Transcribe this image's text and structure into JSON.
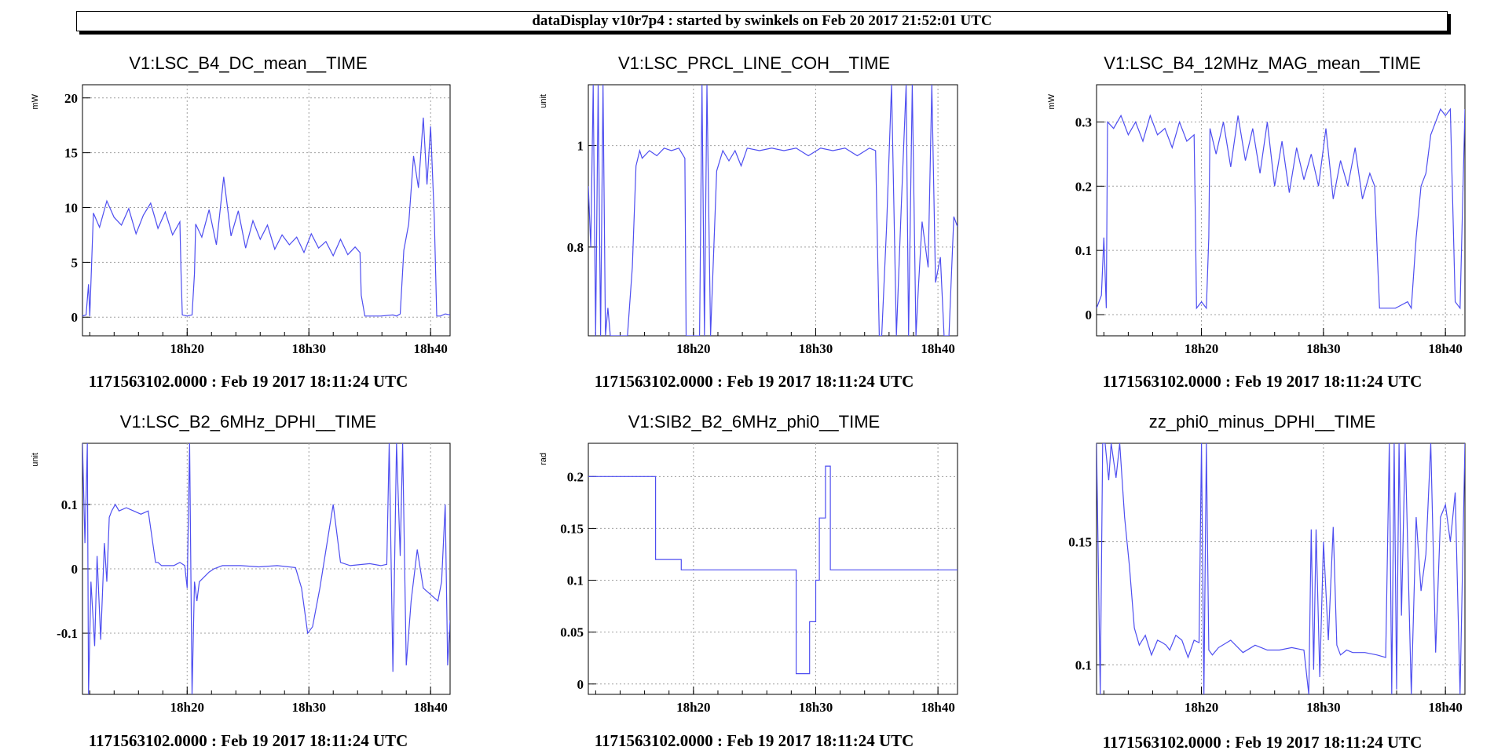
{
  "header": {
    "title": "dataDisplay v10r7p4 : started by swinkels on Feb 20 2017 21:52:01 UTC"
  },
  "style": {
    "line_color": "#4e4ef0",
    "grid_color": "#a0a0a0"
  },
  "chart_data": [
    {
      "type": "line",
      "title": "V1:LSC_B4_DC_mean__TIME",
      "ylabel": "mW",
      "xlabel": "1171563102.0000 : Feb 19 2017 18:11:24 UTC",
      "xlim": [
        0,
        30.2
      ],
      "ylim": [
        -1.7,
        21.2
      ],
      "xticks": [
        {
          "v": 8.6,
          "label": "18h20"
        },
        {
          "v": 18.6,
          "label": "18h30"
        },
        {
          "v": 28.6,
          "label": "18h40"
        }
      ],
      "yticks": [
        {
          "v": 0,
          "label": "0"
        },
        {
          "v": 5,
          "label": "5"
        },
        {
          "v": 10,
          "label": "10"
        },
        {
          "v": 15,
          "label": "15"
        },
        {
          "v": 20,
          "label": "20"
        }
      ],
      "series": [
        {
          "x": [
            0,
            0.3,
            0.5,
            0.6,
            0.9,
            1.4,
            2,
            2.6,
            3.2,
            3.8,
            4.4,
            5,
            5.6,
            6.2,
            6.8,
            7.4,
            8,
            8.1,
            8.2,
            8.6,
            9,
            9.2,
            9.3,
            9.8,
            10.4,
            11,
            11.6,
            12.2,
            12.8,
            13.4,
            14,
            14.6,
            15.2,
            15.8,
            16.4,
            17,
            17.6,
            18.2,
            18.8,
            19.4,
            20,
            20.6,
            21.2,
            21.8,
            22.4,
            22.8,
            22.9,
            23.2,
            24.5,
            25.5,
            25.8,
            26.1,
            26.4,
            26.8,
            27.2,
            27.6,
            28,
            28.3,
            28.6,
            28.9,
            29.1,
            29.4,
            29.8,
            30.2
          ],
          "y": [
            0.1,
            0.2,
            3,
            0.1,
            9.5,
            8.2,
            10.6,
            9.1,
            8.4,
            9.9,
            7.6,
            9.3,
            10.4,
            8.1,
            9.6,
            7.5,
            8.7,
            4,
            0.2,
            0.1,
            0.2,
            4,
            8.5,
            7.3,
            9.8,
            6.6,
            12.8,
            7.4,
            9.7,
            6.3,
            8.8,
            7.1,
            8.4,
            6.2,
            7.5,
            6.6,
            7.3,
            5.9,
            7.6,
            6.3,
            6.9,
            5.6,
            7.1,
            5.7,
            6.4,
            5.9,
            2,
            0.1,
            0.1,
            0.2,
            0.1,
            0.3,
            6.1,
            8.5,
            14.7,
            11.8,
            18.2,
            12.1,
            17.4,
            9,
            0.1,
            0.1,
            0.3,
            0.2
          ]
        }
      ]
    },
    {
      "type": "line",
      "title": "V1:LSC_PRCL_LINE_COH__TIME",
      "ylabel": "unit",
      "xlabel": "1171563102.0000 : Feb 19 2017 18:11:24 UTC",
      "xlim": [
        0,
        30.2
      ],
      "ylim": [
        0.625,
        1.12
      ],
      "xticks": [
        {
          "v": 8.6,
          "label": "18h20"
        },
        {
          "v": 18.6,
          "label": "18h30"
        },
        {
          "v": 28.6,
          "label": "18h40"
        }
      ],
      "yticks": [
        {
          "v": 0.8,
          "label": "0.8"
        },
        {
          "v": 1,
          "label": "1"
        }
      ],
      "series": [
        {
          "x": [
            0,
            0.2,
            0.4,
            0.6,
            0.8,
            1,
            1.2,
            1.4,
            1.6,
            1.8,
            2,
            2.2,
            2.4,
            3.2,
            3.6,
            3.9,
            4.2,
            4.4,
            5,
            5.6,
            6.2,
            6.8,
            7.4,
            7.9,
            8,
            8.2,
            8.6,
            9.1,
            9.3,
            9.5,
            9.7,
            10,
            10.5,
            11,
            11.5,
            12,
            12.5,
            13,
            14,
            15,
            16,
            17,
            18,
            19,
            20,
            21,
            22,
            23,
            23.5,
            23.8,
            24,
            24.4,
            24.8,
            25.2,
            25.6,
            26,
            26.2,
            26.5,
            26.8,
            27,
            27.3,
            27.8,
            28.1,
            28.4,
            28.8,
            29.1,
            29.5,
            29.9,
            30.2
          ],
          "y": [
            0.92,
            0.8,
            1.12,
            0.625,
            1.12,
            0.625,
            1.12,
            0.625,
            0.68,
            0.625,
            0.625,
            0.625,
            0.625,
            0.625,
            0.76,
            0.96,
            0.99,
            0.975,
            0.99,
            0.98,
            0.995,
            0.99,
            0.995,
            0.975,
            0.625,
            0.625,
            0.625,
            0.625,
            1.12,
            0.625,
            1.12,
            0.625,
            0.95,
            0.99,
            0.97,
            0.99,
            0.96,
            0.995,
            0.99,
            0.995,
            0.99,
            0.995,
            0.98,
            0.995,
            0.99,
            0.995,
            0.98,
            0.995,
            0.99,
            0.625,
            0.625,
            0.84,
            1.12,
            0.625,
            0.88,
            1.12,
            0.625,
            1.12,
            0.625,
            0.72,
            0.85,
            0.76,
            1.12,
            0.73,
            0.78,
            0.625,
            0.625,
            0.86,
            0.84
          ]
        }
      ]
    },
    {
      "type": "line",
      "title": "V1:LSC_B4_12MHz_MAG_mean__TIME",
      "ylabel": "mW",
      "xlabel": "1171563102.0000 : Feb 19 2017 18:11:24 UTC",
      "xlim": [
        0,
        30.2
      ],
      "ylim": [
        -0.033,
        0.358
      ],
      "xticks": [
        {
          "v": 8.6,
          "label": "18h20"
        },
        {
          "v": 18.6,
          "label": "18h30"
        },
        {
          "v": 28.6,
          "label": "18h40"
        }
      ],
      "yticks": [
        {
          "v": 0,
          "label": "0"
        },
        {
          "v": 0.1,
          "label": "0.1"
        },
        {
          "v": 0.2,
          "label": "0.2"
        },
        {
          "v": 0.3,
          "label": "0.3"
        }
      ],
      "series": [
        {
          "x": [
            0,
            0.4,
            0.6,
            0.8,
            0.9,
            1.4,
            2,
            2.6,
            3.2,
            3.8,
            4.4,
            5,
            5.6,
            6.2,
            6.8,
            7.4,
            8,
            8.1,
            8.2,
            8.6,
            9,
            9.2,
            9.3,
            9.8,
            10.4,
            11,
            11.6,
            12.2,
            12.8,
            13.4,
            14,
            14.6,
            15.2,
            15.8,
            16.4,
            17,
            17.6,
            18.2,
            18.8,
            19.4,
            20,
            20.6,
            21.2,
            21.8,
            22.4,
            22.8,
            23,
            23.2,
            24.5,
            25.5,
            25.8,
            26.2,
            26.6,
            27,
            27.4,
            27.8,
            28.2,
            28.6,
            29,
            29.4,
            29.8,
            30.2
          ],
          "y": [
            0.01,
            0.03,
            0.12,
            0.01,
            0.3,
            0.29,
            0.31,
            0.28,
            0.3,
            0.27,
            0.31,
            0.28,
            0.29,
            0.26,
            0.3,
            0.27,
            0.28,
            0.15,
            0.01,
            0.02,
            0.01,
            0.12,
            0.29,
            0.25,
            0.3,
            0.23,
            0.31,
            0.24,
            0.29,
            0.22,
            0.3,
            0.2,
            0.27,
            0.19,
            0.26,
            0.21,
            0.25,
            0.2,
            0.29,
            0.18,
            0.24,
            0.2,
            0.26,
            0.18,
            0.22,
            0.2,
            0.1,
            0.01,
            0.01,
            0.02,
            0.01,
            0.12,
            0.2,
            0.22,
            0.28,
            0.3,
            0.32,
            0.31,
            0.32,
            0.02,
            0.01,
            0.32
          ]
        }
      ]
    },
    {
      "type": "line",
      "title": "V1:LSC_B2_6MHz_DPHI__TIME",
      "ylabel": "unit",
      "xlabel": "1171563102.0000 : Feb 19 2017 18:11:24 UTC",
      "xlim": [
        0,
        30.2
      ],
      "ylim": [
        -0.195,
        0.195
      ],
      "xticks": [
        {
          "v": 8.6,
          "label": "18h20"
        },
        {
          "v": 18.6,
          "label": "18h30"
        },
        {
          "v": 28.6,
          "label": "18h40"
        }
      ],
      "yticks": [
        {
          "v": -0.1,
          "label": "-0.1"
        },
        {
          "v": 0,
          "label": "0"
        },
        {
          "v": 0.1,
          "label": "0.1"
        }
      ],
      "series": [
        {
          "x": [
            0,
            0.2,
            0.4,
            0.5,
            0.7,
            1,
            1.2,
            1.5,
            1.8,
            2,
            2.2,
            2.4,
            2.7,
            3,
            3.6,
            4.2,
            4.8,
            5.4,
            6,
            6.2,
            6.5,
            7.5,
            8,
            8.4,
            8.6,
            8.8,
            9,
            9.2,
            9.4,
            9.6,
            10.4,
            10.8,
            11.5,
            13,
            14.5,
            16,
            17.5,
            18,
            18.5,
            18.9,
            19.5,
            20.6,
            21.2,
            22,
            23.6,
            24.5,
            25,
            25.2,
            25.5,
            25.8,
            26.1,
            26.3,
            26.6,
            27,
            27.5,
            28,
            28.6,
            29.2,
            29.5,
            29.8,
            30,
            30.2
          ],
          "y": [
            0.195,
            0.04,
            0.195,
            -0.195,
            -0.02,
            -0.12,
            0.02,
            -0.11,
            0.04,
            -0.02,
            0.08,
            0.09,
            0.1,
            0.09,
            0.095,
            0.09,
            0.085,
            0.09,
            0.01,
            0.01,
            0.005,
            0.005,
            0.01,
            0.005,
            -0.03,
            0.195,
            -0.195,
            -0.02,
            -0.05,
            -0.02,
            -0.005,
            0,
            0.005,
            0.005,
            0.003,
            0.005,
            0.002,
            -0.03,
            -0.1,
            -0.09,
            -0.03,
            0.1,
            0.01,
            0.005,
            0.008,
            0.005,
            0.007,
            0.195,
            -0.16,
            0.195,
            0.02,
            0.195,
            -0.15,
            -0.05,
            0.03,
            -0.03,
            -0.04,
            -0.05,
            -0.02,
            0.1,
            -0.15,
            -0.08
          ]
        }
      ]
    },
    {
      "type": "line",
      "title": "V1:SIB2_B2_6MHz_phi0__TIME",
      "ylabel": "rad",
      "xlabel": "1171563102.0000 : Feb 19 2017 18:11:24 UTC",
      "xlim": [
        0,
        30.2
      ],
      "ylim": [
        -0.01,
        0.232
      ],
      "xticks": [
        {
          "v": 8.6,
          "label": "18h20"
        },
        {
          "v": 18.6,
          "label": "18h30"
        },
        {
          "v": 28.6,
          "label": "18h40"
        }
      ],
      "yticks": [
        {
          "v": 0,
          "label": "0"
        },
        {
          "v": 0.05,
          "label": "0.05"
        },
        {
          "v": 0.1,
          "label": "0.1"
        },
        {
          "v": 0.15,
          "label": "0.15"
        },
        {
          "v": 0.2,
          "label": "0.2"
        }
      ],
      "series": [
        {
          "x": [
            0,
            5.5,
            5.5,
            7.6,
            7.6,
            17,
            17,
            18.1,
            18.1,
            18.6,
            18.6,
            18.9,
            18.9,
            19.4,
            19.4,
            19.8,
            19.8,
            20.5,
            20.5,
            30.2
          ],
          "y": [
            0.2,
            0.2,
            0.12,
            0.12,
            0.11,
            0.11,
            0.01,
            0.01,
            0.06,
            0.06,
            0.1,
            0.1,
            0.16,
            0.16,
            0.21,
            0.21,
            0.11,
            0.11,
            0.11,
            0.11
          ]
        }
      ]
    },
    {
      "type": "line",
      "title": "zz_phi0_minus_DPHI__TIME",
      "ylabel": "",
      "xlabel": "1171563102.0000 : Feb 19 2017 18:11:24 UTC",
      "xlim": [
        0,
        30.2
      ],
      "ylim": [
        0.088,
        0.19
      ],
      "xticks": [
        {
          "v": 8.6,
          "label": "18h20"
        },
        {
          "v": 18.6,
          "label": "18h30"
        },
        {
          "v": 28.6,
          "label": "18h40"
        }
      ],
      "yticks": [
        {
          "v": 0.1,
          "label": "0.1"
        },
        {
          "v": 0.15,
          "label": "0.15"
        }
      ],
      "series": [
        {
          "x": [
            0,
            0.3,
            0.5,
            0.7,
            1,
            1.2,
            1.6,
            1.9,
            2.3,
            2.7,
            3.1,
            3.5,
            4,
            4.5,
            5,
            5.4,
            5.7,
            6,
            6.5,
            7,
            7.5,
            8,
            8.4,
            8.6,
            8.8,
            9,
            9.2,
            9.5,
            10,
            11,
            12,
            13,
            14,
            15,
            16,
            17,
            17.4,
            17.6,
            17.8,
            18,
            18.3,
            18.6,
            19,
            19.4,
            19.7,
            20,
            20.5,
            21,
            22,
            23,
            23.7,
            24,
            24.2,
            24.4,
            24.6,
            24.8,
            25,
            25.3,
            25.8,
            26.2,
            26.6,
            27,
            27.4,
            27.8,
            28.2,
            28.6,
            29,
            29.4,
            29.8,
            30.2
          ],
          "y": [
            0.19,
            0.088,
            0.19,
            0.19,
            0.175,
            0.19,
            0.176,
            0.19,
            0.16,
            0.14,
            0.115,
            0.108,
            0.112,
            0.104,
            0.11,
            0.109,
            0.108,
            0.106,
            0.112,
            0.11,
            0.103,
            0.11,
            0.109,
            0.19,
            0.088,
            0.19,
            0.106,
            0.104,
            0.107,
            0.11,
            0.105,
            0.108,
            0.106,
            0.106,
            0.107,
            0.106,
            0.088,
            0.155,
            0.098,
            0.155,
            0.095,
            0.15,
            0.11,
            0.156,
            0.108,
            0.104,
            0.106,
            0.105,
            0.105,
            0.104,
            0.103,
            0.19,
            0.088,
            0.19,
            0.09,
            0.19,
            0.12,
            0.19,
            0.088,
            0.16,
            0.13,
            0.145,
            0.19,
            0.105,
            0.16,
            0.165,
            0.15,
            0.17,
            0.088,
            0.19
          ]
        }
      ]
    }
  ]
}
